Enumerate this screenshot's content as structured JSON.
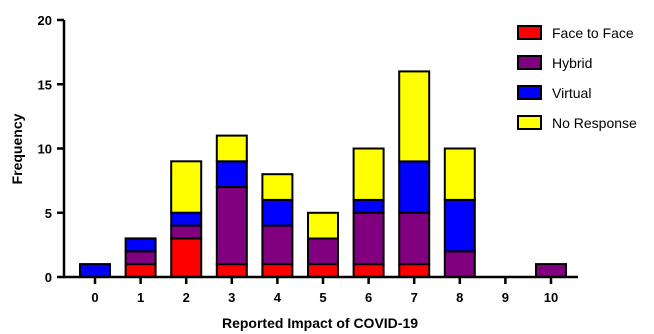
{
  "chart_data": {
    "type": "bar",
    "stacked": true,
    "xlabel": "Reported Impact of COVID-19",
    "ylabel": "Frequency",
    "ylim": [
      0,
      20
    ],
    "y_ticks": [
      0,
      5,
      10,
      15,
      20
    ],
    "grid": false,
    "legend_position": "top-right",
    "categories": [
      "0",
      "1",
      "2",
      "3",
      "4",
      "5",
      "6",
      "7",
      "8",
      "9",
      "10"
    ],
    "series": [
      {
        "name": "Face to Face",
        "color": "#ff0000",
        "values": [
          0,
          1,
          3,
          1,
          1,
          1,
          1,
          1,
          0,
          0,
          0
        ]
      },
      {
        "name": "Hybrid",
        "color": "#800080",
        "values": [
          0,
          1,
          1,
          6,
          3,
          2,
          4,
          4,
          2,
          0,
          1
        ]
      },
      {
        "name": "Virtual",
        "color": "#0000ff",
        "values": [
          1,
          1,
          1,
          2,
          2,
          0,
          1,
          4,
          4,
          0,
          0
        ]
      },
      {
        "name": "No Response",
        "color": "#ffff00",
        "values": [
          0,
          0,
          4,
          2,
          2,
          2,
          4,
          7,
          4,
          0,
          0
        ]
      }
    ]
  }
}
